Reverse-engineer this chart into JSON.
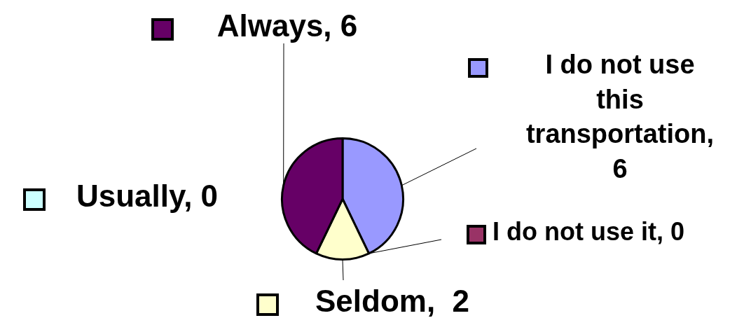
{
  "chart_data": {
    "type": "pie",
    "categories": [
      "I do not use this transportation, 6",
      "I do not use it, 0",
      "Seldom,  2",
      "Usually, 0",
      "Always, 6"
    ],
    "values": [
      6,
      0,
      2,
      0,
      6
    ],
    "colors": [
      "#9999ff",
      "#993366",
      "#ffffcc",
      "#ccffff",
      "#660066"
    ],
    "legend": "right"
  }
}
